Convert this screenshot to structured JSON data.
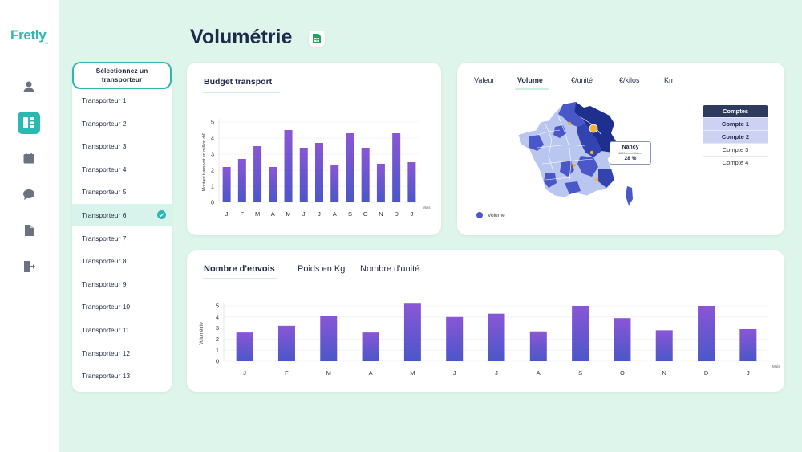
{
  "app": {
    "logo": "Fretly",
    "logo_sub": "AI"
  },
  "nav": {
    "items": [
      "user-icon",
      "dashboard-icon",
      "calendar-icon",
      "chat-icon",
      "document-icon",
      "logout-icon"
    ],
    "active_index": 1
  },
  "page": {
    "title": "Volumétrie"
  },
  "carriers": {
    "select_label": "Sélectionnez un transporteur",
    "items": [
      "Transporteur 1",
      "Transporteur 2",
      "Transporteur 3",
      "Transporteur 4",
      "Transporteur 5",
      "Transporteur 6",
      "Transporteur 7",
      "Transporteur 8",
      "Transporteur 9",
      "Transporteur 10",
      "Transporteur 11",
      "Transporteur 12",
      "Transporteur 13"
    ],
    "selected_index": 5
  },
  "budget": {
    "title": "Budget transport",
    "chart_data": {
      "type": "bar",
      "categories": [
        "J",
        "F",
        "M",
        "A",
        "M",
        "J",
        "J",
        "A",
        "S",
        "O",
        "N",
        "D",
        "J"
      ],
      "values": [
        2.2,
        2.7,
        3.5,
        2.2,
        4.5,
        3.4,
        3.7,
        2.3,
        4.3,
        3.4,
        2.4,
        4.3,
        2.5
      ],
      "ylabel": "Montant transport en million d'€",
      "xlabel": "Mois",
      "ylim": [
        0,
        5
      ],
      "yticks": [
        0,
        1,
        2,
        3,
        4,
        5
      ],
      "grid": true
    }
  },
  "map": {
    "tabs": [
      "Valeur",
      "Volume",
      "€/unité",
      "€/kilos",
      "Km"
    ],
    "active_tab": 1,
    "legend": "Volume",
    "tooltip": {
      "city": "Nancy",
      "detail": "4800 expéditions",
      "percent": "28 %"
    },
    "accounts": {
      "header": "Comptes",
      "items": [
        "Compte 1",
        "Compte 2",
        "Compte 3",
        "Compte 4"
      ],
      "highlighted": [
        0,
        1
      ]
    },
    "colors": {
      "dark": "#1e2f8e",
      "mid": "#4a57c8",
      "light": "#b9c6f0",
      "hotspot": "#f5b335"
    }
  },
  "shipments": {
    "tabs": [
      "Nombre d'envois",
      "Poids en Kg",
      "Nombre d'unité"
    ],
    "active_tab": 0,
    "chart_data": {
      "type": "bar",
      "categories": [
        "J",
        "F",
        "M",
        "A",
        "M",
        "J",
        "J",
        "A",
        "S",
        "O",
        "N",
        "D",
        "J"
      ],
      "values": [
        2.6,
        3.2,
        4.1,
        2.6,
        5.2,
        4.0,
        4.3,
        2.7,
        5.0,
        3.9,
        2.8,
        5.0,
        2.9
      ],
      "ylabel": "Volumétrie",
      "xlabel": "Mois",
      "ylim": [
        0,
        5
      ],
      "yticks": [
        0,
        1,
        2,
        3,
        4,
        5
      ],
      "grid": true
    }
  },
  "theme": {
    "accent": "#2bb8b0",
    "bar_top": "#8a56d6",
    "bar_bottom": "#4a57c8",
    "bg": "#ddf5ea"
  }
}
